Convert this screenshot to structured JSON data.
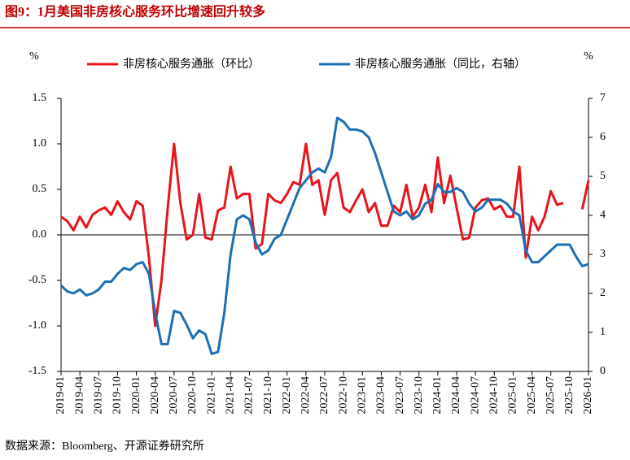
{
  "chart_data": {
    "type": "line",
    "title": "图9：1月美国非房核心服务环比增速回升较多",
    "source": "数据来源：Bloomberg、开源证券研究所",
    "y_label": "%",
    "y2_label": "%",
    "categories": [
      "2019-01",
      null,
      null,
      "2019-04",
      null,
      null,
      "2019-07",
      null,
      null,
      "2019-10",
      null,
      null,
      "2020-01",
      null,
      null,
      "2020-04",
      null,
      null,
      "2020-07",
      null,
      null,
      "2020-10",
      null,
      null,
      "2021-01",
      null,
      null,
      "2021-04",
      null,
      null,
      "2021-07",
      null,
      null,
      "2021-10",
      null,
      null,
      "2022-01",
      null,
      null,
      "2022-04",
      null,
      null,
      "2022-07",
      null,
      null,
      "2022-10",
      null,
      null,
      "2023-01",
      null,
      null,
      "2023-04",
      null,
      null,
      "2023-07",
      null,
      null,
      "2023-10",
      null,
      null,
      "2024-01",
      null,
      null,
      "2024-04",
      null,
      null,
      "2024-07",
      null,
      null,
      "2024-10",
      null,
      null,
      "2025-01",
      null,
      null,
      "2025-04",
      null,
      null,
      "2025-07",
      null,
      null,
      "2025-10",
      null,
      null,
      "2026-01"
    ],
    "series": [
      {
        "name": "非房核心服务通胀（环比）",
        "color": "#e8141c",
        "values": [
          0.2,
          0.15,
          0.05,
          0.2,
          0.08,
          0.22,
          0.27,
          0.3,
          0.22,
          0.37,
          0.25,
          0.17,
          0.37,
          0.32,
          -0.25,
          -1.0,
          -0.5,
          0.3,
          1.0,
          0.35,
          -0.05,
          0.0,
          0.45,
          -0.03,
          -0.05,
          0.27,
          0.3,
          0.75,
          0.4,
          0.45,
          0.45,
          -0.15,
          -0.1,
          0.45,
          0.38,
          0.35,
          0.45,
          0.58,
          0.55,
          1.0,
          0.55,
          0.6,
          0.22,
          0.6,
          0.68,
          0.3,
          0.25,
          0.38,
          0.5,
          0.25,
          0.35,
          0.1,
          0.1,
          0.32,
          0.25,
          0.55,
          0.2,
          0.3,
          0.55,
          0.25,
          0.85,
          0.35,
          0.65,
          0.3,
          -0.05,
          -0.03,
          0.3,
          0.38,
          0.4,
          0.28,
          0.32,
          0.2,
          0.2,
          0.75,
          -0.25,
          0.2,
          0.05,
          0.2,
          0.48,
          0.33,
          0.35,
          null,
          null,
          0.28,
          0.6
        ]
      },
      {
        "name": "非房核心服务通胀（同比，右轴）",
        "color": "#1a6fb5",
        "axis": "y2",
        "values": [
          2.2,
          2.05,
          2.0,
          2.1,
          1.95,
          2.0,
          2.1,
          2.3,
          2.3,
          2.5,
          2.65,
          2.6,
          2.75,
          2.8,
          2.5,
          1.5,
          0.7,
          0.7,
          1.55,
          1.5,
          1.2,
          0.85,
          1.05,
          0.95,
          0.45,
          0.5,
          1.5,
          3.0,
          3.9,
          4.0,
          3.9,
          3.3,
          3.0,
          3.1,
          3.4,
          3.5,
          3.9,
          4.3,
          4.7,
          4.9,
          5.1,
          5.2,
          5.1,
          5.5,
          6.5,
          6.4,
          6.2,
          6.2,
          6.15,
          6.0,
          5.6,
          5.1,
          4.6,
          4.1,
          4.0,
          4.1,
          3.9,
          4.0,
          4.3,
          4.4,
          4.8,
          4.6,
          4.6,
          4.7,
          4.6,
          4.3,
          4.1,
          4.2,
          4.4,
          4.4,
          4.4,
          4.3,
          4.1,
          4.0,
          3.1,
          2.8,
          2.8,
          2.95,
          3.1,
          3.25,
          3.25,
          3.25,
          2.95,
          2.7,
          2.75
        ]
      }
    ],
    "ylim": [
      -1.5,
      1.5
    ],
    "yticks": [
      {
        "value": 1.5,
        "label": "1.5"
      },
      {
        "value": 1.0,
        "label": "1.0"
      },
      {
        "value": 0.5,
        "label": "0.5"
      },
      {
        "value": 0.0,
        "label": "0.0"
      },
      {
        "value": -0.5,
        "label": "-0.5"
      },
      {
        "value": -1.0,
        "label": "-1.0"
      },
      {
        "value": -1.5,
        "label": "-1.5"
      }
    ],
    "y2lim": [
      0,
      7
    ],
    "y2ticks": [
      0,
      1,
      2,
      3,
      4,
      5,
      6,
      7
    ],
    "grid": false
  }
}
